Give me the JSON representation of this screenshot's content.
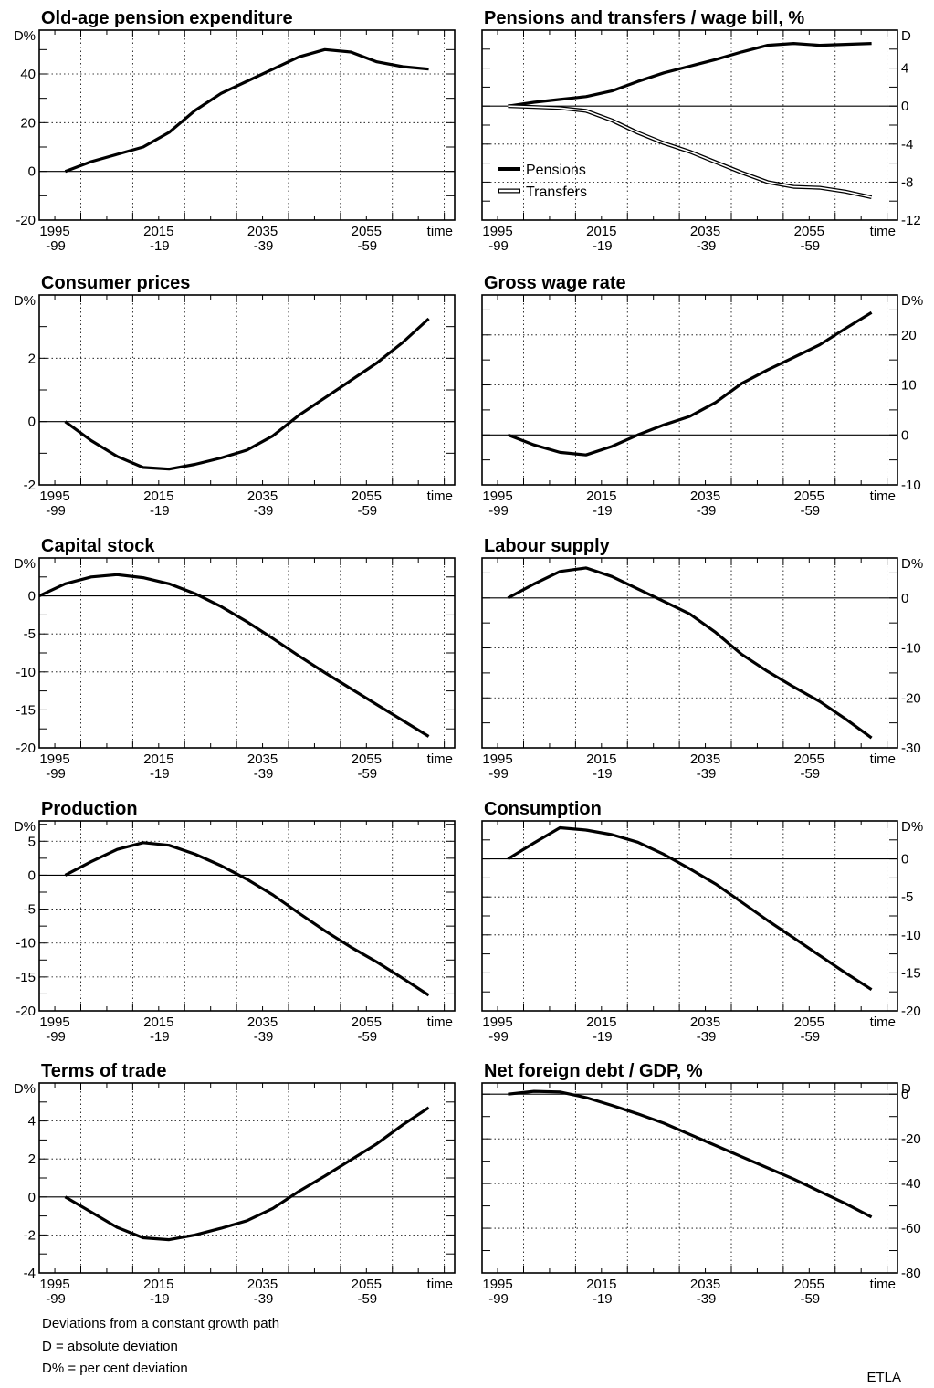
{
  "notes": [
    "Deviations from a constant growth path",
    "D = absolute deviation",
    "D% = per cent deviation"
  ],
  "credit": "ETLA",
  "chart_data": [
    {
      "type": "line",
      "title": "Old-age pension expenditure",
      "unit": "D%",
      "axis_side": "left",
      "ylim": [
        -20,
        58
      ],
      "yticks": [
        -20,
        0,
        20,
        40
      ],
      "xticks": [
        [
          "1995",
          "-99"
        ],
        [
          "2015",
          "-19"
        ],
        [
          "2035",
          "-39"
        ],
        [
          "2055",
          "-59"
        ]
      ],
      "x_end_label": "time",
      "x": [
        1997,
        2002,
        2007,
        2012,
        2017,
        2022,
        2027,
        2032,
        2037,
        2042,
        2047,
        2052,
        2057,
        2062,
        2067
      ],
      "series": [
        {
          "style": "thick",
          "values": [
            0,
            4,
            7,
            10,
            16,
            25,
            32,
            37,
            42,
            47,
            50,
            49,
            45,
            43,
            42
          ]
        }
      ],
      "grid": true,
      "legend": null
    },
    {
      "type": "line",
      "title": "Pensions and transfers / wage bill, %",
      "unit": "D",
      "axis_side": "right",
      "ylim": [
        -12,
        8
      ],
      "yticks": [
        -12,
        -8,
        -4,
        0,
        4
      ],
      "xticks": [
        [
          "1995",
          "-99"
        ],
        [
          "2015",
          "-19"
        ],
        [
          "2035",
          "-39"
        ],
        [
          "2055",
          "-59"
        ]
      ],
      "x_end_label": "time",
      "x": [
        1997,
        2002,
        2007,
        2012,
        2017,
        2022,
        2027,
        2032,
        2037,
        2042,
        2047,
        2052,
        2057,
        2062,
        2067
      ],
      "series": [
        {
          "name": "Pensions",
          "style": "thick",
          "values": [
            0,
            0.4,
            0.7,
            1.0,
            1.6,
            2.6,
            3.5,
            4.2,
            4.9,
            5.7,
            6.4,
            6.6,
            6.4,
            6.5,
            6.6
          ]
        },
        {
          "name": "Transfers",
          "style": "double",
          "values": [
            0,
            -0.1,
            -0.2,
            -0.5,
            -1.5,
            -2.8,
            -3.9,
            -4.8,
            -5.9,
            -7.0,
            -8.0,
            -8.5,
            -8.6,
            -9.0,
            -9.6
          ]
        }
      ],
      "grid": true,
      "legend": "bottom-left"
    },
    {
      "type": "line",
      "title": "Consumer prices",
      "unit": "D%",
      "axis_side": "left",
      "ylim": [
        -2,
        4
      ],
      "yticks": [
        -2,
        0,
        2
      ],
      "xticks": [
        [
          "1995",
          "-99"
        ],
        [
          "2015",
          "-19"
        ],
        [
          "2035",
          "-39"
        ],
        [
          "2055",
          "-59"
        ]
      ],
      "x_end_label": "time",
      "x": [
        1997,
        2002,
        2007,
        2012,
        2017,
        2022,
        2027,
        2032,
        2037,
        2042,
        2047,
        2052,
        2057,
        2062,
        2067
      ],
      "series": [
        {
          "style": "thick",
          "values": [
            0,
            -0.6,
            -1.1,
            -1.45,
            -1.5,
            -1.35,
            -1.15,
            -0.9,
            -0.45,
            0.2,
            0.75,
            1.3,
            1.85,
            2.5,
            3.25
          ]
        }
      ],
      "grid": true,
      "legend": null
    },
    {
      "type": "line",
      "title": "Gross wage rate",
      "unit": "D%",
      "axis_side": "right",
      "ylim": [
        -10,
        28
      ],
      "yticks": [
        -10,
        0,
        10,
        20
      ],
      "xticks": [
        [
          "1995",
          "-99"
        ],
        [
          "2015",
          "-19"
        ],
        [
          "2035",
          "-39"
        ],
        [
          "2055",
          "-59"
        ]
      ],
      "x_end_label": "time",
      "x": [
        1997,
        2002,
        2007,
        2012,
        2017,
        2022,
        2027,
        2032,
        2037,
        2042,
        2047,
        2052,
        2057,
        2062,
        2067
      ],
      "series": [
        {
          "style": "thick",
          "values": [
            0,
            -2,
            -3.5,
            -4,
            -2.3,
            0,
            2,
            3.7,
            6.5,
            10.3,
            13,
            15.5,
            18,
            21.3,
            24.5
          ]
        }
      ],
      "grid": true,
      "legend": null
    },
    {
      "type": "line",
      "title": "Capital stock",
      "unit": "D%",
      "axis_side": "left",
      "ylim": [
        -20,
        5
      ],
      "yticks": [
        -20,
        -15,
        -10,
        -5,
        0
      ],
      "xticks": [
        [
          "1995",
          "-99"
        ],
        [
          "2015",
          "-19"
        ],
        [
          "2035",
          "-39"
        ],
        [
          "2055",
          "-59"
        ]
      ],
      "x_end_label": "time",
      "x": [
        1992,
        1997,
        2002,
        2007,
        2012,
        2017,
        2022,
        2027,
        2032,
        2037,
        2042,
        2047,
        2052,
        2057,
        2062,
        2067
      ],
      "series": [
        {
          "style": "thick",
          "values": [
            0,
            1.6,
            2.5,
            2.8,
            2.4,
            1.6,
            0.3,
            -1.4,
            -3.4,
            -5.6,
            -7.9,
            -10.1,
            -12.2,
            -14.3,
            -16.4,
            -18.5
          ]
        }
      ],
      "grid": true,
      "legend": null
    },
    {
      "type": "line",
      "title": "Labour supply",
      "unit": "D%",
      "axis_side": "right",
      "ylim": [
        -30,
        8
      ],
      "yticks": [
        -30,
        -20,
        -10,
        0
      ],
      "xticks": [
        [
          "1995",
          "-99"
        ],
        [
          "2015",
          "-19"
        ],
        [
          "2035",
          "-39"
        ],
        [
          "2055",
          "-59"
        ]
      ],
      "x_end_label": "time",
      "x": [
        1997,
        2002,
        2007,
        2012,
        2017,
        2022,
        2027,
        2032,
        2037,
        2042,
        2047,
        2052,
        2057,
        2062,
        2067
      ],
      "series": [
        {
          "style": "thick",
          "values": [
            0,
            2.8,
            5.3,
            6,
            4.3,
            1.8,
            -0.7,
            -3.2,
            -6.9,
            -11.3,
            -14.7,
            -17.8,
            -20.7,
            -24.2,
            -28
          ]
        }
      ],
      "grid": true,
      "legend": null
    },
    {
      "type": "line",
      "title": "Production",
      "unit": "D%",
      "axis_side": "left",
      "ylim": [
        -20,
        8
      ],
      "yticks": [
        -20,
        -15,
        -10,
        -5,
        0,
        5
      ],
      "xticks": [
        [
          "1995",
          "-99"
        ],
        [
          "2015",
          "-19"
        ],
        [
          "2035",
          "-39"
        ],
        [
          "2055",
          "-59"
        ]
      ],
      "x_end_label": "time",
      "x": [
        1997,
        2002,
        2007,
        2012,
        2017,
        2022,
        2027,
        2032,
        2037,
        2042,
        2047,
        2052,
        2057,
        2062,
        2067
      ],
      "series": [
        {
          "style": "thick",
          "values": [
            0,
            2,
            3.8,
            4.8,
            4.4,
            3.1,
            1.4,
            -0.6,
            -2.9,
            -5.6,
            -8.2,
            -10.6,
            -12.8,
            -15.2,
            -17.7
          ]
        }
      ],
      "grid": true,
      "legend": null
    },
    {
      "type": "line",
      "title": "Consumption",
      "unit": "D%",
      "axis_side": "right",
      "ylim": [
        -20,
        5
      ],
      "yticks": [
        -20,
        -15,
        -10,
        -5,
        0
      ],
      "xticks": [
        [
          "1995",
          "-99"
        ],
        [
          "2015",
          "-19"
        ],
        [
          "2035",
          "-39"
        ],
        [
          "2055",
          "-59"
        ]
      ],
      "x_end_label": "time",
      "x": [
        1997,
        2002,
        2007,
        2012,
        2017,
        2022,
        2027,
        2032,
        2037,
        2042,
        2047,
        2052,
        2057,
        2062,
        2067
      ],
      "series": [
        {
          "style": "thick",
          "values": [
            0,
            2.1,
            4.1,
            3.8,
            3.2,
            2.2,
            0.6,
            -1.3,
            -3.3,
            -5.7,
            -8.1,
            -10.4,
            -12.7,
            -15,
            -17.2
          ]
        }
      ],
      "grid": true,
      "legend": null
    },
    {
      "type": "line",
      "title": "Terms of trade",
      "unit": "D%",
      "axis_side": "left",
      "ylim": [
        -4,
        6
      ],
      "yticks": [
        -4,
        -2,
        0,
        2,
        4
      ],
      "xticks": [
        [
          "1995",
          "-99"
        ],
        [
          "2015",
          "-19"
        ],
        [
          "2035",
          "-39"
        ],
        [
          "2055",
          "-59"
        ]
      ],
      "x_end_label": "time",
      "x": [
        1997,
        2002,
        2007,
        2012,
        2017,
        2022,
        2027,
        2032,
        2037,
        2042,
        2047,
        2052,
        2057,
        2062,
        2067
      ],
      "series": [
        {
          "style": "thick",
          "values": [
            0,
            -0.8,
            -1.6,
            -2.15,
            -2.25,
            -2.0,
            -1.65,
            -1.25,
            -0.6,
            0.3,
            1.1,
            1.95,
            2.8,
            3.8,
            4.7
          ]
        }
      ],
      "grid": true,
      "legend": null
    },
    {
      "type": "line",
      "title": "Net foreign debt / GDP, %",
      "unit": "D",
      "axis_side": "right",
      "ylim": [
        -80,
        5
      ],
      "yticks": [
        -80,
        -60,
        -40,
        -20,
        0
      ],
      "xticks": [
        [
          "1995",
          "-99"
        ],
        [
          "2015",
          "-19"
        ],
        [
          "2035",
          "-39"
        ],
        [
          "2055",
          "-59"
        ]
      ],
      "x_end_label": "time",
      "x": [
        1997,
        2002,
        2007,
        2012,
        2017,
        2022,
        2027,
        2032,
        2037,
        2042,
        2047,
        2052,
        2057,
        2062,
        2067
      ],
      "series": [
        {
          "style": "thick",
          "values": [
            0,
            1.3,
            1,
            -1.5,
            -5,
            -8.8,
            -13,
            -18,
            -23,
            -28,
            -33,
            -38,
            -43.5,
            -49,
            -55
          ]
        }
      ],
      "grid": true,
      "legend": null
    }
  ]
}
